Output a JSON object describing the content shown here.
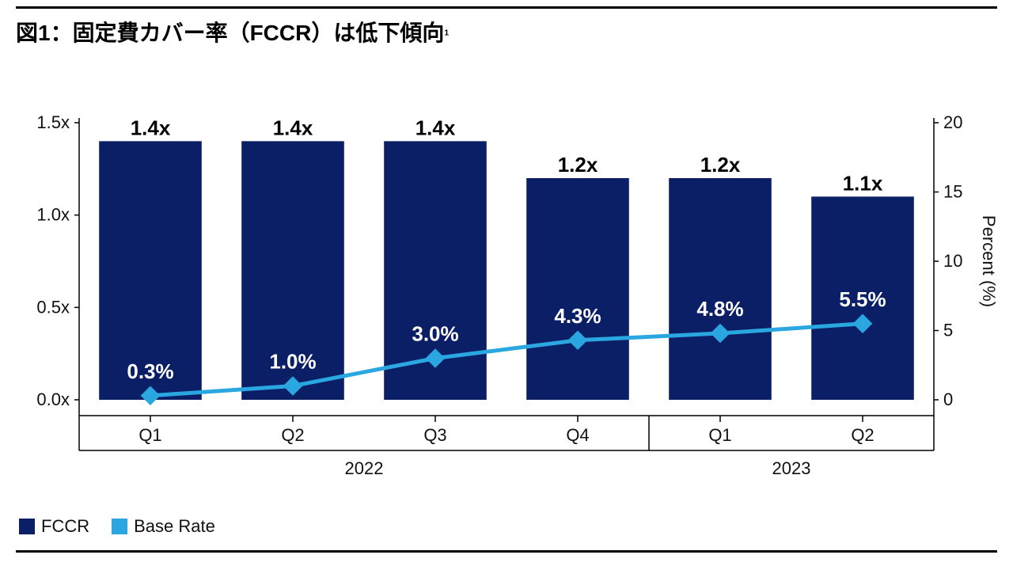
{
  "title_main": "図1：固定費カバー率（FCCR）は低下傾向",
  "title_sup": "1",
  "title_fontsize": 28,
  "chart": {
    "type": "bar+line",
    "categories": [
      "Q1",
      "Q2",
      "Q3",
      "Q4",
      "Q1",
      "Q2"
    ],
    "year_groups": [
      {
        "label": "2022",
        "span": [
          0,
          3
        ]
      },
      {
        "label": "2023",
        "span": [
          4,
          5
        ]
      }
    ],
    "bars": {
      "values": [
        1.4,
        1.4,
        1.4,
        1.2,
        1.2,
        1.1
      ],
      "labels": [
        "1.4x",
        "1.4x",
        "1.4x",
        "1.2x",
        "1.2x",
        "1.1x"
      ],
      "color": "#0b1f66",
      "width_ratio": 0.72
    },
    "line": {
      "values": [
        0.3,
        1.0,
        3.0,
        4.3,
        4.8,
        5.5
      ],
      "labels": [
        "0.3%",
        "1.0%",
        "3.0%",
        "4.3%",
        "4.8%",
        "5.5%"
      ],
      "color": "#2aa7e1",
      "line_width": 5,
      "marker": "diamond",
      "marker_size": 16
    },
    "left_axis": {
      "ticks": [
        0.0,
        0.5,
        1.0,
        1.5
      ],
      "tick_labels": [
        "0.0x",
        "0.5x",
        "1.0x",
        "1.5x"
      ],
      "min": 0.0,
      "max": 1.5
    },
    "right_axis": {
      "ticks": [
        0,
        5,
        10,
        15,
        20
      ],
      "tick_labels": [
        "0",
        "5",
        "10",
        "15",
        "20"
      ],
      "title": "Percent (%)",
      "min": 0,
      "max": 20
    },
    "axis_fontsize": 22,
    "label_fontsize": 26,
    "background_color": "#ffffff",
    "axis_color": "#000000"
  },
  "legend": {
    "items": [
      {
        "label": "FCCR",
        "color": "#0b1f66"
      },
      {
        "label": "Base Rate",
        "color": "#2aa7e1"
      }
    ]
  }
}
